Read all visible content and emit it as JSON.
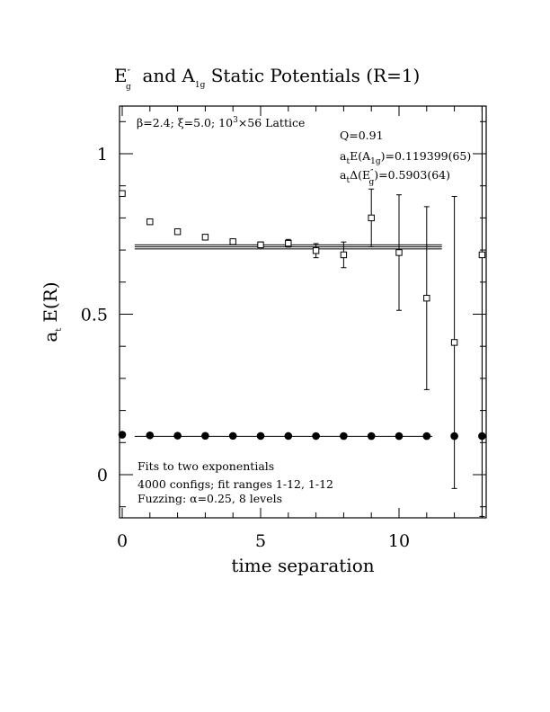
{
  "chart_data": {
    "type": "scatter",
    "title_parts": [
      "E",
      "″",
      "g",
      "  and A",
      "1g",
      " Static Potentials (R=1)"
    ],
    "xlabel": "time separation",
    "ylabel_parts": [
      "a",
      "t",
      " E(R)"
    ],
    "xlim": [
      -0.1,
      13.1
    ],
    "ylim": [
      -0.13,
      1.15
    ],
    "xticks": [
      0,
      5,
      10
    ],
    "yticks": [
      0,
      0.5,
      1
    ],
    "xtick_labels": [
      "0",
      "5",
      "10"
    ],
    "ytick_labels": [
      "0",
      "0.5",
      "1"
    ],
    "legend": "none",
    "annotations": {
      "lattice": [
        "β=2.4; ξ=5.0; 10",
        "3",
        "×56 Lattice"
      ],
      "q": "Q=0.91",
      "a1g": [
        "a",
        "t",
        "E(A",
        "1g",
        ")=0.119399(65)"
      ],
      "eg": [
        "a",
        "t",
        "Δ(E",
        "″",
        "g",
        ")=0.5903(64)"
      ],
      "fits": "Fits to two exponentials",
      "configs": "4000 configs; fit ranges 1-12, 1-12",
      "fuzzing": "Fuzzing: α=0.25, 8 levels"
    },
    "series": [
      {
        "marker": "open-square",
        "points": [
          {
            "x": 0,
            "y": 0.876,
            "err": 0.004
          },
          {
            "x": 1,
            "y": 0.788,
            "err": 0.004
          },
          {
            "x": 2,
            "y": 0.757,
            "err": 0.005
          },
          {
            "x": 3,
            "y": 0.74,
            "err": 0.006
          },
          {
            "x": 4,
            "y": 0.726,
            "err": 0.007
          },
          {
            "x": 5,
            "y": 0.716,
            "err": 0.009
          },
          {
            "x": 6,
            "y": 0.721,
            "err": 0.012
          },
          {
            "x": 7,
            "y": 0.698,
            "err": 0.022
          },
          {
            "x": 8,
            "y": 0.685,
            "err": 0.04
          },
          {
            "x": 9,
            "y": 0.8,
            "err": 0.09
          },
          {
            "x": 10,
            "y": 0.692,
            "err": 0.18
          },
          {
            "x": 11,
            "y": 0.55,
            "err": 0.285
          },
          {
            "x": 12,
            "y": 0.412,
            "err": 0.455
          },
          {
            "x": 13,
            "y": 0.685,
            "err": 0.815
          }
        ]
      },
      {
        "marker": "filled-circle",
        "points": [
          {
            "x": 0,
            "y": 0.1245
          },
          {
            "x": 1,
            "y": 0.1225
          },
          {
            "x": 2,
            "y": 0.1215
          },
          {
            "x": 3,
            "y": 0.121
          },
          {
            "x": 4,
            "y": 0.1208
          },
          {
            "x": 5,
            "y": 0.1206
          },
          {
            "x": 6,
            "y": 0.1205
          },
          {
            "x": 7,
            "y": 0.1204
          },
          {
            "x": 8,
            "y": 0.1203
          },
          {
            "x": 9,
            "y": 0.1203
          },
          {
            "x": 10,
            "y": 0.1202
          },
          {
            "x": 11,
            "y": 0.1202
          },
          {
            "x": 12,
            "y": 0.1202
          },
          {
            "x": 13,
            "y": 0.1202
          }
        ]
      }
    ],
    "fit_lines": [
      {
        "name": "A1g fit",
        "y": 0.119399,
        "x_range": [
          1,
          12
        ]
      },
      {
        "name": "Eg fit",
        "y_values": [
          0.7033,
          0.7097,
          0.7161
        ],
        "x_range": [
          1,
          12
        ]
      }
    ]
  }
}
